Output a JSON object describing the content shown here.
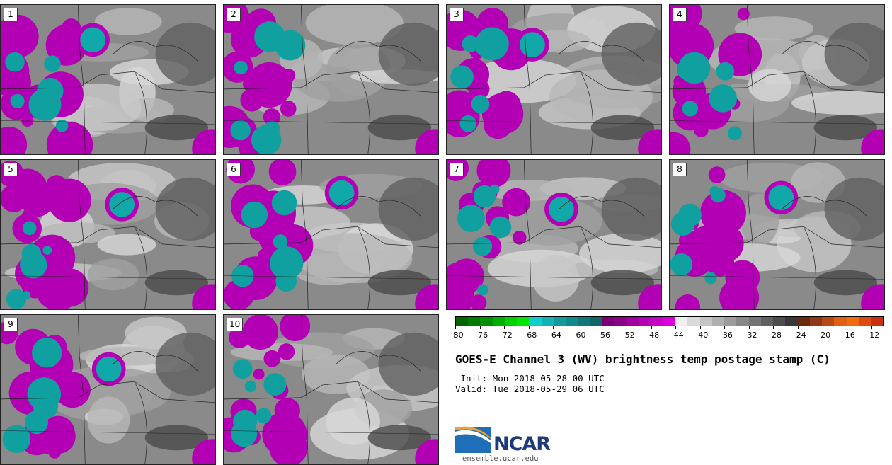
{
  "panels": [
    {
      "label": "1"
    },
    {
      "label": "2"
    },
    {
      "label": "3"
    },
    {
      "label": "4"
    },
    {
      "label": "5"
    },
    {
      "label": "6"
    },
    {
      "label": "7"
    },
    {
      "label": "8"
    },
    {
      "label": "9"
    },
    {
      "label": "10"
    }
  ],
  "colorbar": {
    "colors": [
      "#006400",
      "#007a00",
      "#009100",
      "#00b000",
      "#00d000",
      "#00e600",
      "#10cccc",
      "#10b4b4",
      "#109c9c",
      "#108a8a",
      "#107878",
      "#106666",
      "#7a007a",
      "#8c008c",
      "#a000a0",
      "#b400b4",
      "#c800c8",
      "#dc00dc",
      "#f0f0f0",
      "#dadada",
      "#c4c4c4",
      "#b0b0b0",
      "#9c9c9c",
      "#888888",
      "#747474",
      "#606060",
      "#4c4c4c",
      "#383838",
      "#6a2a10",
      "#8c3a14",
      "#b84818",
      "#e06010",
      "#f06a10",
      "#e04a10",
      "#c83010"
    ],
    "tick_labels": [
      "−80",
      "−76",
      "−72",
      "−68",
      "−64",
      "−60",
      "−56",
      "−52",
      "−48",
      "−44",
      "−40",
      "−36",
      "−32",
      "−28",
      "−24",
      "−20",
      "−16",
      "−12"
    ]
  },
  "title": "GOES-E Channel 3 (WV) brightness temp postage stamp (C)",
  "init": " Init: Mon 2018-05-28 00 UTC",
  "valid": "Valid: Tue 2018-05-29 06 UTC",
  "logo_text": "NCAR",
  "url": "ensemble.ucar.edu"
}
